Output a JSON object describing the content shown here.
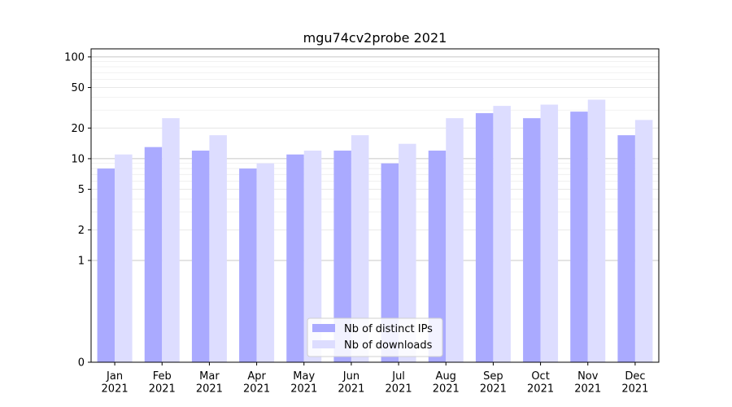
{
  "chart_data": {
    "type": "bar",
    "title": "mgu74cv2probe 2021",
    "xlabel": "",
    "ylabel": "",
    "yscale": "symlog",
    "ylim": [
      0,
      120
    ],
    "yticks": [
      0,
      1,
      2,
      5,
      10,
      20,
      50,
      100
    ],
    "ytick_labels": [
      "0",
      "1",
      "2",
      "5",
      "10",
      "20",
      "50",
      "100"
    ],
    "categories": [
      "Jan\n2021",
      "Feb\n2021",
      "Mar\n2021",
      "Apr\n2021",
      "May\n2021",
      "Jun\n2021",
      "Jul\n2021",
      "Aug\n2021",
      "Sep\n2021",
      "Oct\n2021",
      "Nov\n2021",
      "Dec\n2021"
    ],
    "series": [
      {
        "name": "Nb of distinct IPs",
        "color": "#aaaaff",
        "values": [
          8,
          13,
          12,
          8,
          11,
          12,
          9,
          12,
          28,
          25,
          29,
          17
        ]
      },
      {
        "name": "Nb of downloads",
        "color": "#ddddff",
        "values": [
          11,
          25,
          17,
          9,
          12,
          17,
          14,
          25,
          33,
          34,
          38,
          24
        ]
      }
    ],
    "grid": true,
    "legend_position": "bottom-center"
  }
}
